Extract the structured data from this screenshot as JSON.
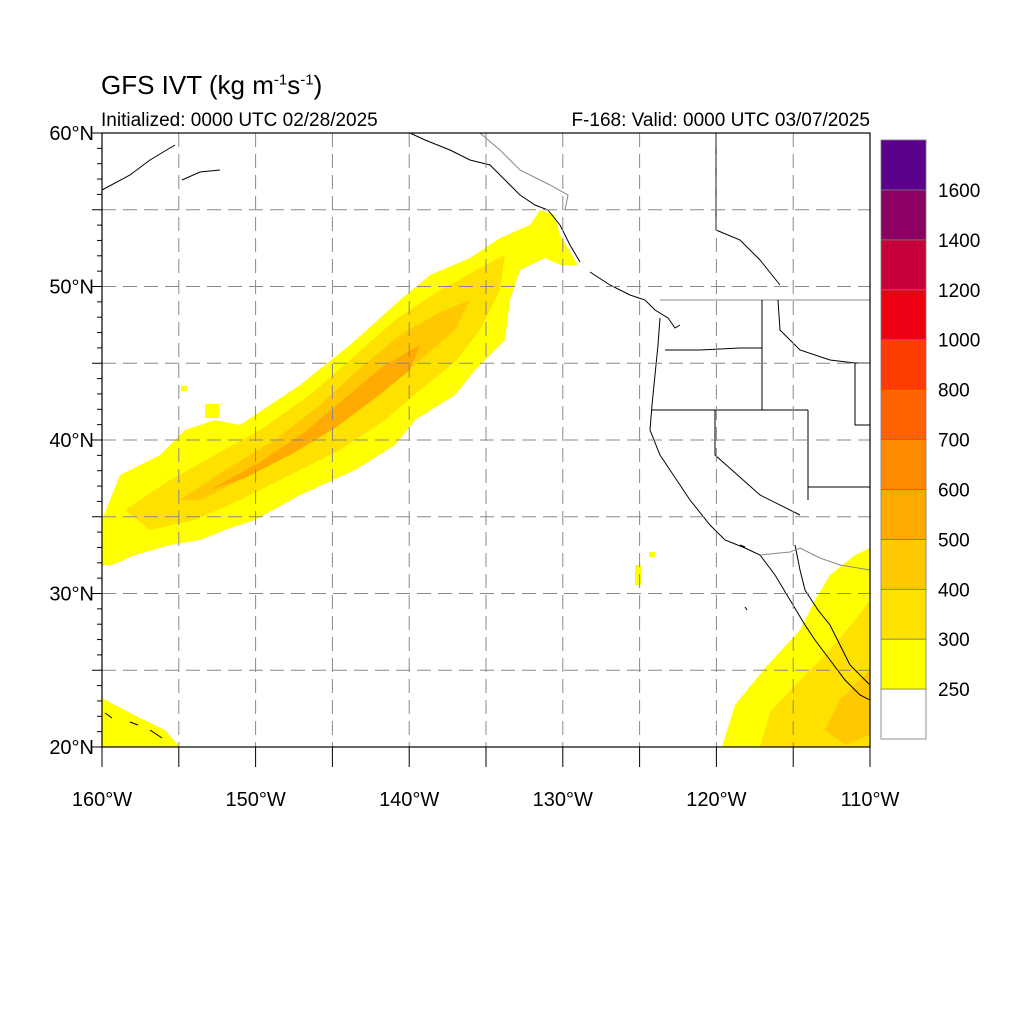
{
  "title": {
    "text": "GFS IVT (kg m",
    "exp1": "-1",
    "mid": "s",
    "exp2": "-1",
    "close": ")"
  },
  "subtitle_left": "Initialized: 0000 UTC 02/28/2025",
  "subtitle_right": "F-168: Valid: 0000 UTC 03/07/2025",
  "map": {
    "lon_range": [
      -160,
      -110
    ],
    "lat_range": [
      20,
      60
    ],
    "grid_lons": [
      -155,
      -150,
      -145,
      -140,
      -135,
      -130,
      -125,
      -120,
      -115
    ],
    "grid_lats": [
      25,
      30,
      35,
      40,
      45,
      50,
      55
    ],
    "lat_labels": [
      {
        "lat": 60,
        "text": "60°N"
      },
      {
        "lat": 50,
        "text": "50°N"
      },
      {
        "lat": 40,
        "text": "40°N"
      },
      {
        "lat": 30,
        "text": "30°N"
      },
      {
        "lat": 20,
        "text": "20°N"
      }
    ],
    "lon_labels": [
      {
        "lon": -160,
        "text": "160°W"
      },
      {
        "lon": -150,
        "text": "150°W"
      },
      {
        "lon": -140,
        "text": "140°W"
      },
      {
        "lon": -130,
        "text": "130°W"
      },
      {
        "lon": -120,
        "text": "120°W"
      },
      {
        "lon": -110,
        "text": "110°W"
      }
    ]
  },
  "colorbar": {
    "levels": [
      "250",
      "300",
      "400",
      "500",
      "600",
      "700",
      "800",
      "1000",
      "1200",
      "1400",
      "1600"
    ],
    "colors": [
      "#ffffff",
      "#ffff00",
      "#ffe100",
      "#ffc800",
      "#ffaa00",
      "#ff8c00",
      "#ff6400",
      "#ff3c00",
      "#ee0014",
      "#c8003c",
      "#8c0064",
      "#5a008c"
    ]
  },
  "fill_colors": {
    "level_300": "#ffff00",
    "level_400": "#ffe100",
    "level_500": "#ffc800",
    "level_600": "#ffaa00"
  }
}
